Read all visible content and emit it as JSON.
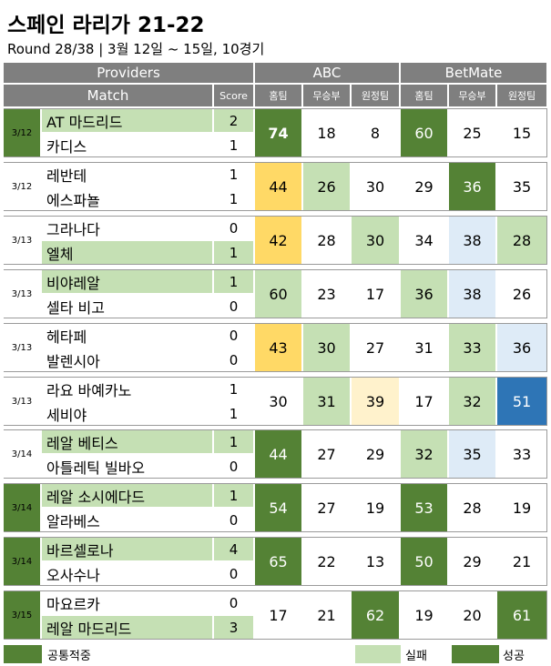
{
  "title": "스페인 라리가 21-22",
  "subtitle": "Round 28/38 | 3월 12일 ~ 15일, 10경기",
  "colors": {
    "header": "#7f7f7f",
    "success": "#548235",
    "fail": "#c5e0b4",
    "yellow": "#ffd966",
    "lightyellow": "#fff2cc",
    "lightblue": "#deebf7",
    "blue": "#2e75b6"
  },
  "header": {
    "providers": "Providers",
    "match": "Match",
    "score": "Score",
    "abc": "ABC",
    "betmate": "BetMate",
    "home": "홈팀",
    "draw": "무승부",
    "away": "원정팀"
  },
  "chart_data": {
    "type": "table",
    "matches": [
      {
        "date": "3/12",
        "date_hl": true,
        "home": "AT 마드리드",
        "away": "카디스",
        "home_hl": true,
        "away_hl": false,
        "home_score": "2",
        "away_score": "1",
        "abc": [
          "74",
          "18",
          "8"
        ],
        "abc_c": [
          "success",
          "none",
          "none"
        ],
        "abc_bold": [
          true,
          false,
          false
        ],
        "bm": [
          "60",
          "25",
          "15"
        ],
        "bm_c": [
          "success",
          "none",
          "none"
        ]
      },
      {
        "date": "3/12",
        "date_hl": false,
        "home": "레반테",
        "away": "에스파뇰",
        "home_hl": false,
        "away_hl": false,
        "home_score": "1",
        "away_score": "1",
        "abc": [
          "44",
          "26",
          "30"
        ],
        "abc_c": [
          "yellow",
          "fail",
          "none"
        ],
        "abc_bold": [
          false,
          false,
          false
        ],
        "bm": [
          "29",
          "36",
          "35"
        ],
        "bm_c": [
          "none",
          "success",
          "none"
        ]
      },
      {
        "date": "3/13",
        "date_hl": false,
        "home": "그라나다",
        "away": "엘체",
        "home_hl": false,
        "away_hl": true,
        "home_score": "0",
        "away_score": "1",
        "abc": [
          "42",
          "28",
          "30"
        ],
        "abc_c": [
          "yellow",
          "none",
          "fail"
        ],
        "abc_bold": [
          false,
          false,
          false
        ],
        "bm": [
          "34",
          "38",
          "28"
        ],
        "bm_c": [
          "none",
          "lightblue",
          "fail"
        ]
      },
      {
        "date": "3/13",
        "date_hl": false,
        "home": "비야레알",
        "away": "셀타 비고",
        "home_hl": true,
        "away_hl": false,
        "home_score": "1",
        "away_score": "0",
        "abc": [
          "60",
          "23",
          "17"
        ],
        "abc_c": [
          "fail",
          "none",
          "none"
        ],
        "abc_bold": [
          false,
          false,
          false
        ],
        "bm": [
          "36",
          "38",
          "26"
        ],
        "bm_c": [
          "fail",
          "lightblue",
          "none"
        ]
      },
      {
        "date": "3/13",
        "date_hl": false,
        "home": "헤타페",
        "away": "발렌시아",
        "home_hl": false,
        "away_hl": false,
        "home_score": "0",
        "away_score": "0",
        "abc": [
          "43",
          "30",
          "27"
        ],
        "abc_c": [
          "yellow",
          "fail",
          "none"
        ],
        "abc_bold": [
          false,
          false,
          false
        ],
        "bm": [
          "31",
          "33",
          "36"
        ],
        "bm_c": [
          "none",
          "fail",
          "lightblue"
        ]
      },
      {
        "date": "3/13",
        "date_hl": false,
        "home": "라요 바예카노",
        "away": "세비야",
        "home_hl": false,
        "away_hl": false,
        "home_score": "1",
        "away_score": "1",
        "abc": [
          "30",
          "31",
          "39"
        ],
        "abc_c": [
          "none",
          "fail",
          "lightyellow"
        ],
        "abc_bold": [
          false,
          false,
          false
        ],
        "bm": [
          "17",
          "32",
          "51"
        ],
        "bm_c": [
          "none",
          "fail",
          "blue"
        ]
      },
      {
        "date": "3/14",
        "date_hl": false,
        "home": "레알 베티스",
        "away": "아틀레틱 빌바오",
        "home_hl": true,
        "away_hl": false,
        "home_score": "1",
        "away_score": "0",
        "abc": [
          "44",
          "27",
          "29"
        ],
        "abc_c": [
          "success",
          "none",
          "none"
        ],
        "abc_bold": [
          false,
          false,
          false
        ],
        "bm": [
          "32",
          "35",
          "33"
        ],
        "bm_c": [
          "fail",
          "lightblue",
          "none"
        ]
      },
      {
        "date": "3/14",
        "date_hl": true,
        "home": "레알 소시에다드",
        "away": "알라베스",
        "home_hl": true,
        "away_hl": false,
        "home_score": "1",
        "away_score": "0",
        "abc": [
          "54",
          "27",
          "19"
        ],
        "abc_c": [
          "success",
          "none",
          "none"
        ],
        "abc_bold": [
          false,
          false,
          false
        ],
        "bm": [
          "53",
          "28",
          "19"
        ],
        "bm_c": [
          "success",
          "none",
          "none"
        ]
      },
      {
        "date": "3/14",
        "date_hl": true,
        "home": "바르셀로나",
        "away": "오사수나",
        "home_hl": true,
        "away_hl": false,
        "home_score": "4",
        "away_score": "0",
        "abc": [
          "65",
          "22",
          "13"
        ],
        "abc_c": [
          "success",
          "none",
          "none"
        ],
        "abc_bold": [
          false,
          false,
          false
        ],
        "bm": [
          "50",
          "29",
          "21"
        ],
        "bm_c": [
          "success",
          "none",
          "none"
        ]
      },
      {
        "date": "3/15",
        "date_hl": true,
        "home": "마요르카",
        "away": "레알 마드리드",
        "home_hl": false,
        "away_hl": true,
        "home_score": "0",
        "away_score": "3",
        "abc": [
          "17",
          "21",
          "62"
        ],
        "abc_c": [
          "none",
          "none",
          "success"
        ],
        "abc_bold": [
          false,
          false,
          false
        ],
        "bm": [
          "19",
          "20",
          "61"
        ],
        "bm_c": [
          "none",
          "none",
          "success"
        ]
      }
    ]
  },
  "legend": [
    {
      "label": "공통적중",
      "color": "success"
    },
    {
      "label": "실패",
      "color": "fail"
    },
    {
      "label": "성공",
      "color": "success"
    }
  ]
}
